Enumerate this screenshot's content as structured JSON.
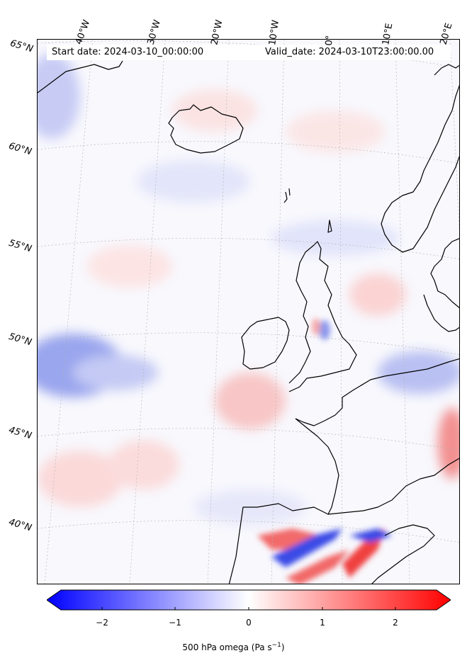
{
  "header": {
    "start_date": "Start date: 2024-03-10_00:00:00",
    "valid_date": "Valid_date: 2024-03-10T23:00:00.00"
  },
  "longitude_labels": [
    "40°W",
    "30°W",
    "20°W",
    "10°W",
    "0°",
    "10°E",
    "20°E"
  ],
  "latitude_labels": [
    "65°N",
    "60°N",
    "55°N",
    "50°N",
    "45°N",
    "40°N"
  ],
  "colorbar": {
    "ticks": [
      "−2",
      "−1",
      "0",
      "1",
      "2"
    ],
    "title_main": "500 hPa omega (Pa s",
    "title_exp": "−1",
    "title_close": ")",
    "min": -2.6,
    "max": 2.6,
    "colormap": "bwr",
    "extend": "both"
  },
  "colors": {
    "negative": "#0000ff",
    "neutral": "#ffffff",
    "positive": "#ff0000",
    "coastline": "#000000",
    "gridline": "#b0b0b0"
  },
  "map": {
    "projection": "conic",
    "variable": "omega_500hPa",
    "features": [
      "coastlines",
      "graticule"
    ]
  }
}
